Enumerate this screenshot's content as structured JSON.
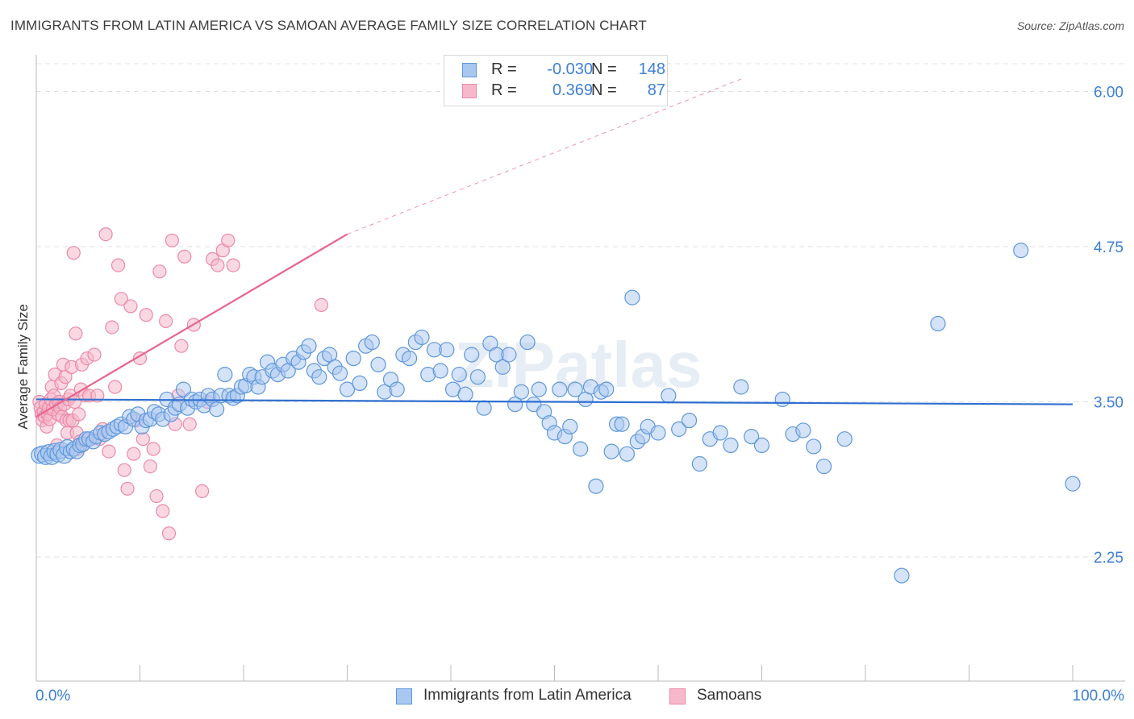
{
  "title": "IMMIGRANTS FROM LATIN AMERICA VS SAMOAN AVERAGE FAMILY SIZE CORRELATION CHART",
  "source": "Source: ZipAtlas.com",
  "watermark": "ZIPatlas",
  "legend": {
    "rows": [
      {
        "r_label": "R =",
        "r_value": "-0.030",
        "n_label": "N =",
        "n_value": "148"
      },
      {
        "r_label": "R =",
        "r_value": "0.369",
        "n_label": "N =",
        "n_value": "87"
      }
    ]
  },
  "bottom_legend": [
    "Immigrants from Latin America",
    "Samoans"
  ],
  "colors": {
    "blue_fill": "#a9c8f0",
    "blue_stroke": "#5f97dc",
    "blue_line": "#2f6fd0",
    "pink_fill": "#f6b8cb",
    "pink_stroke": "#ea8aa8",
    "pink_line": "#e8648f",
    "axis_text": "#3d7fd6",
    "grid": "#e0e0e0"
  },
  "chart_data": {
    "type": "scatter",
    "title": "IMMIGRANTS FROM LATIN AMERICA VS SAMOAN AVERAGE FAMILY SIZE CORRELATION CHART",
    "xlabel": "",
    "ylabel": "Average Family Size",
    "xlim": [
      0,
      100
    ],
    "ylim": [
      1.25,
      6.25
    ],
    "x_tick_labels": [
      "0.0%",
      "100.0%"
    ],
    "y_ticks": [
      2.25,
      3.5,
      4.75,
      6.0
    ],
    "y_tick_labels": [
      "2.25",
      "3.50",
      "4.75",
      "6.00"
    ],
    "grid": true,
    "legend_placement": "top-center",
    "series": [
      {
        "name": "Immigrants from Latin America",
        "color": "#a9c8f0",
        "trend": {
          "x": [
            0,
            100
          ],
          "y": [
            3.52,
            3.48
          ]
        },
        "points": [
          [
            0.3,
            3.07
          ],
          [
            0.6,
            3.08
          ],
          [
            0.9,
            3.06
          ],
          [
            1.2,
            3.09
          ],
          [
            1.5,
            3.06
          ],
          [
            1.8,
            3.1
          ],
          [
            2.1,
            3.08
          ],
          [
            2.4,
            3.11
          ],
          [
            2.7,
            3.07
          ],
          [
            3.0,
            3.13
          ],
          [
            3.3,
            3.1
          ],
          [
            3.6,
            3.12
          ],
          [
            3.9,
            3.1
          ],
          [
            4.2,
            3.15
          ],
          [
            4.5,
            3.16
          ],
          [
            4.8,
            3.2
          ],
          [
            5.1,
            3.2
          ],
          [
            5.5,
            3.18
          ],
          [
            5.8,
            3.22
          ],
          [
            6.2,
            3.25
          ],
          [
            6.6,
            3.24
          ],
          [
            7.0,
            3.26
          ],
          [
            7.4,
            3.28
          ],
          [
            7.8,
            3.3
          ],
          [
            8.2,
            3.32
          ],
          [
            8.6,
            3.3
          ],
          [
            9.0,
            3.38
          ],
          [
            9.4,
            3.36
          ],
          [
            9.8,
            3.4
          ],
          [
            10.2,
            3.3
          ],
          [
            10.6,
            3.35
          ],
          [
            11.0,
            3.36
          ],
          [
            11.4,
            3.42
          ],
          [
            11.8,
            3.4
          ],
          [
            12.2,
            3.36
          ],
          [
            12.6,
            3.52
          ],
          [
            13.0,
            3.4
          ],
          [
            13.4,
            3.45
          ],
          [
            13.8,
            3.48
          ],
          [
            14.2,
            3.6
          ],
          [
            14.6,
            3.45
          ],
          [
            15.0,
            3.52
          ],
          [
            15.4,
            3.5
          ],
          [
            15.8,
            3.52
          ],
          [
            16.2,
            3.47
          ],
          [
            16.6,
            3.55
          ],
          [
            17.0,
            3.52
          ],
          [
            17.4,
            3.44
          ],
          [
            17.8,
            3.55
          ],
          [
            18.2,
            3.72
          ],
          [
            18.6,
            3.55
          ],
          [
            19.0,
            3.53
          ],
          [
            19.4,
            3.55
          ],
          [
            19.8,
            3.62
          ],
          [
            20.2,
            3.63
          ],
          [
            20.6,
            3.72
          ],
          [
            21.0,
            3.7
          ],
          [
            21.4,
            3.62
          ],
          [
            21.8,
            3.7
          ],
          [
            22.3,
            3.82
          ],
          [
            22.8,
            3.75
          ],
          [
            23.3,
            3.72
          ],
          [
            23.8,
            3.8
          ],
          [
            24.3,
            3.75
          ],
          [
            24.8,
            3.85
          ],
          [
            25.3,
            3.82
          ],
          [
            25.8,
            3.9
          ],
          [
            26.3,
            3.95
          ],
          [
            26.8,
            3.75
          ],
          [
            27.3,
            3.7
          ],
          [
            27.8,
            3.85
          ],
          [
            28.3,
            3.88
          ],
          [
            28.8,
            3.78
          ],
          [
            29.3,
            3.73
          ],
          [
            30.0,
            3.6
          ],
          [
            30.6,
            3.85
          ],
          [
            31.2,
            3.65
          ],
          [
            31.8,
            3.95
          ],
          [
            32.4,
            3.98
          ],
          [
            33.0,
            3.8
          ],
          [
            33.6,
            3.58
          ],
          [
            34.2,
            3.68
          ],
          [
            34.8,
            3.6
          ],
          [
            35.4,
            3.88
          ],
          [
            36.0,
            3.85
          ],
          [
            36.6,
            3.98
          ],
          [
            37.2,
            4.02
          ],
          [
            37.8,
            3.72
          ],
          [
            38.4,
            3.92
          ],
          [
            39.0,
            3.75
          ],
          [
            39.6,
            3.92
          ],
          [
            40.2,
            3.6
          ],
          [
            40.8,
            3.72
          ],
          [
            41.4,
            3.56
          ],
          [
            42.0,
            3.88
          ],
          [
            42.6,
            3.7
          ],
          [
            43.2,
            3.45
          ],
          [
            43.8,
            3.97
          ],
          [
            44.4,
            3.88
          ],
          [
            45.0,
            3.78
          ],
          [
            45.6,
            3.88
          ],
          [
            46.2,
            3.48
          ],
          [
            46.8,
            3.58
          ],
          [
            47.4,
            3.98
          ],
          [
            48.0,
            3.48
          ],
          [
            48.5,
            3.6
          ],
          [
            49.0,
            3.42
          ],
          [
            49.5,
            3.33
          ],
          [
            50.0,
            3.25
          ],
          [
            50.5,
            3.6
          ],
          [
            51.0,
            3.22
          ],
          [
            51.5,
            3.3
          ],
          [
            52.0,
            3.6
          ],
          [
            52.5,
            3.12
          ],
          [
            53.0,
            3.52
          ],
          [
            53.5,
            3.62
          ],
          [
            54.0,
            2.82
          ],
          [
            54.5,
            3.58
          ],
          [
            55.0,
            3.6
          ],
          [
            55.5,
            3.1
          ],
          [
            56.0,
            3.32
          ],
          [
            56.5,
            3.32
          ],
          [
            57.0,
            3.08
          ],
          [
            57.5,
            4.34
          ],
          [
            58.0,
            3.18
          ],
          [
            58.5,
            3.22
          ],
          [
            59.0,
            3.3
          ],
          [
            60.0,
            3.25
          ],
          [
            61.0,
            3.55
          ],
          [
            62.0,
            3.28
          ],
          [
            63.0,
            3.35
          ],
          [
            64.0,
            3.0
          ],
          [
            65.0,
            3.2
          ],
          [
            66.0,
            3.25
          ],
          [
            67.0,
            3.15
          ],
          [
            68.0,
            3.62
          ],
          [
            69.0,
            3.22
          ],
          [
            70.0,
            3.15
          ],
          [
            72.0,
            3.52
          ],
          [
            73.0,
            3.24
          ],
          [
            74.0,
            3.27
          ],
          [
            75.0,
            3.14
          ],
          [
            76.0,
            2.98
          ],
          [
            78.0,
            3.2
          ],
          [
            83.5,
            2.1
          ],
          [
            87.0,
            4.13
          ],
          [
            95.0,
            4.72
          ],
          [
            100.0,
            2.84
          ]
        ]
      },
      {
        "name": "Samoans",
        "color": "#f6b8cb",
        "trend": {
          "x": [
            0,
            30
          ],
          "y": [
            3.38,
            4.85
          ]
        },
        "trend_extension": {
          "x": [
            30,
            68
          ],
          "y": [
            4.85,
            6.1
          ]
        },
        "points": [
          [
            0.3,
            3.5
          ],
          [
            0.4,
            3.45
          ],
          [
            0.5,
            3.4
          ],
          [
            0.6,
            3.35
          ],
          [
            0.7,
            3.42
          ],
          [
            0.8,
            3.38
          ],
          [
            0.9,
            3.48
          ],
          [
            1.0,
            3.3
          ],
          [
            1.1,
            3.4
          ],
          [
            1.2,
            3.45
          ],
          [
            1.3,
            3.36
          ],
          [
            1.4,
            3.52
          ],
          [
            1.5,
            3.62
          ],
          [
            1.6,
            3.44
          ],
          [
            1.7,
            3.55
          ],
          [
            1.8,
            3.72
          ],
          [
            1.9,
            3.48
          ],
          [
            2.0,
            3.15
          ],
          [
            2.1,
            3.4
          ],
          [
            2.2,
            3.5
          ],
          [
            2.3,
            3.45
          ],
          [
            2.4,
            3.65
          ],
          [
            2.5,
            3.38
          ],
          [
            2.6,
            3.8
          ],
          [
            2.7,
            3.48
          ],
          [
            2.8,
            3.7
          ],
          [
            2.9,
            3.35
          ],
          [
            3.0,
            3.25
          ],
          [
            3.1,
            3.52
          ],
          [
            3.2,
            3.35
          ],
          [
            3.3,
            3.55
          ],
          [
            3.4,
            3.78
          ],
          [
            3.5,
            3.35
          ],
          [
            3.6,
            4.7
          ],
          [
            3.7,
            3.5
          ],
          [
            3.8,
            4.05
          ],
          [
            3.9,
            3.25
          ],
          [
            4.0,
            3.12
          ],
          [
            4.1,
            3.4
          ],
          [
            4.2,
            3.18
          ],
          [
            4.3,
            3.6
          ],
          [
            4.4,
            3.8
          ],
          [
            4.5,
            3.15
          ],
          [
            4.7,
            3.55
          ],
          [
            4.9,
            3.85
          ],
          [
            5.1,
            3.55
          ],
          [
            5.3,
            3.2
          ],
          [
            5.6,
            3.88
          ],
          [
            5.9,
            3.55
          ],
          [
            6.1,
            3.2
          ],
          [
            6.4,
            3.28
          ],
          [
            6.7,
            4.85
          ],
          [
            7.0,
            3.1
          ],
          [
            7.3,
            4.1
          ],
          [
            7.6,
            3.62
          ],
          [
            7.9,
            4.6
          ],
          [
            8.2,
            4.33
          ],
          [
            8.5,
            2.95
          ],
          [
            8.8,
            2.8
          ],
          [
            9.1,
            4.27
          ],
          [
            9.4,
            3.08
          ],
          [
            9.7,
            3.35
          ],
          [
            10.0,
            3.85
          ],
          [
            10.3,
            3.2
          ],
          [
            10.6,
            4.2
          ],
          [
            11.0,
            2.98
          ],
          [
            11.3,
            3.12
          ],
          [
            11.6,
            2.74
          ],
          [
            11.9,
            4.55
          ],
          [
            12.2,
            2.62
          ],
          [
            12.5,
            4.15
          ],
          [
            12.8,
            2.44
          ],
          [
            13.1,
            4.8
          ],
          [
            13.4,
            3.32
          ],
          [
            13.7,
            3.55
          ],
          [
            14.0,
            3.95
          ],
          [
            14.3,
            4.67
          ],
          [
            14.8,
            3.32
          ],
          [
            15.2,
            4.12
          ],
          [
            16.0,
            2.78
          ],
          [
            16.5,
            3.5
          ],
          [
            17.0,
            4.65
          ],
          [
            17.5,
            4.6
          ],
          [
            18.0,
            4.72
          ],
          [
            18.5,
            4.8
          ],
          [
            19.0,
            4.6
          ],
          [
            27.5,
            4.28
          ]
        ]
      }
    ]
  }
}
